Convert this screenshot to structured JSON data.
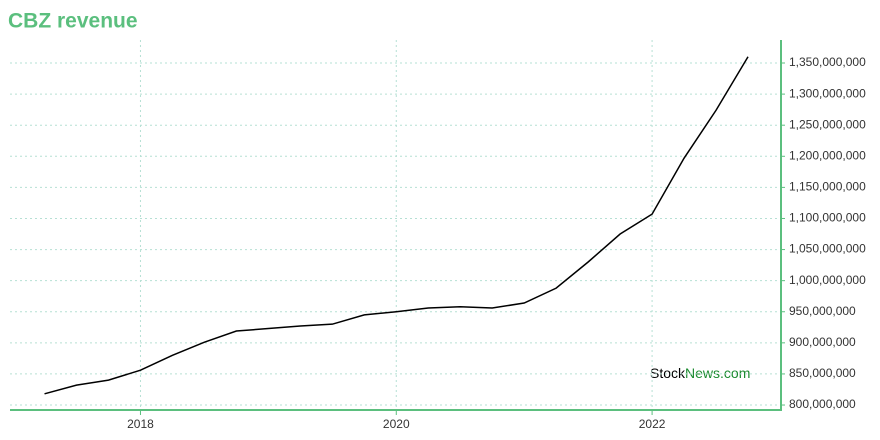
{
  "chart_data": {
    "type": "line",
    "title": "CBZ revenue",
    "x": [
      2017.25,
      2017.5,
      2017.75,
      2018,
      2018.25,
      2018.5,
      2018.75,
      2019,
      2019.25,
      2019.5,
      2019.75,
      2020,
      2020.25,
      2020.5,
      2020.75,
      2021,
      2021.25,
      2021.5,
      2021.75,
      2022,
      2022.25,
      2022.5,
      2022.75
    ],
    "series": [
      {
        "name": "CBZ revenue",
        "color": "#000000",
        "values": [
          818000000,
          832000000,
          840000000,
          856000000,
          880000000,
          901000000,
          919000000,
          923000000,
          927000000,
          930000000,
          945000000,
          950000000,
          956000000,
          958000000,
          956000000,
          964000000,
          988000000,
          1030000000,
          1075000000,
          1107000000,
          1197000000,
          1274000000,
          1360000000
        ]
      }
    ],
    "xlim": [
      2016.98,
      2023.0
    ],
    "xticks": [
      2018,
      2020,
      2022
    ],
    "ylim": [
      792000000,
      1387000000
    ],
    "yticks": [
      {
        "value": 800000000,
        "label": "800,000,000"
      },
      {
        "value": 850000000,
        "label": "850,000,000"
      },
      {
        "value": 900000000,
        "label": "900,000,000"
      },
      {
        "value": 950000000,
        "label": "950,000,000"
      },
      {
        "value": 1000000000,
        "label": "1,000,000,000"
      },
      {
        "value": 1050000000,
        "label": "1,050,000,000"
      },
      {
        "value": 1100000000,
        "label": "1,100,000,000"
      },
      {
        "value": 1150000000,
        "label": "1,150,000,000"
      },
      {
        "value": 1200000000,
        "label": "1,200,000,000"
      },
      {
        "value": 1250000000,
        "label": "1,250,000,000"
      },
      {
        "value": 1300000000,
        "label": "1,300,000,000"
      },
      {
        "value": 1350000000,
        "label": "1,350,000,000"
      }
    ],
    "grid": true,
    "axis_color": "#5bbf7e",
    "watermark": [
      "Stock",
      "News.com"
    ]
  }
}
